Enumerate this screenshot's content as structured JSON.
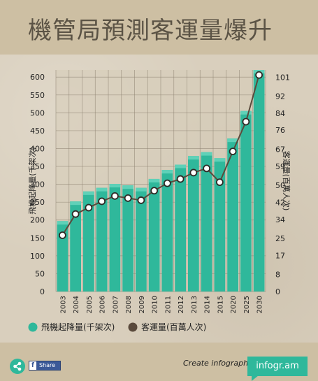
{
  "header": {
    "title": "機管局預測客運量爆升"
  },
  "chart_data": {
    "type": "bar-line",
    "categories": [
      "2003",
      "2004",
      "2005",
      "2006",
      "2007",
      "2008",
      "2009",
      "2010",
      "2011",
      "2012",
      "2013",
      "2014",
      "2015",
      "2020",
      "2025",
      "2030"
    ],
    "series": [
      {
        "name": "飛機起降量(千架次)",
        "type": "bar",
        "axis": "left",
        "color": "#2fb89b",
        "values": [
          197,
          252,
          280,
          290,
          301,
          297,
          290,
          315,
          340,
          355,
          379,
          390,
          373,
          428,
          505,
          620
        ]
      },
      {
        "name": "客運量(百萬人次)",
        "type": "line",
        "axis": "right",
        "color": "#5a4a3c",
        "values": [
          26.5,
          36.5,
          39.5,
          42.5,
          45,
          44,
          43,
          47.5,
          51,
          53,
          56,
          58,
          51.5,
          66,
          80,
          102
        ]
      }
    ],
    "ylabel_left": "飛機起降量(千架次)",
    "ylabel_right": "客運量(百萬人次)",
    "yticks_left": [
      0,
      50,
      100,
      150,
      200,
      250,
      300,
      350,
      400,
      450,
      500,
      550,
      600
    ],
    "ylim_left": [
      0,
      620
    ],
    "yticks_right": [
      0,
      8,
      17,
      25,
      34,
      42,
      50,
      59,
      67,
      76,
      84,
      92,
      101
    ],
    "ylim_right": [
      0,
      104.4
    ],
    "grid": true,
    "legend_position": "bottom"
  },
  "footer": {
    "share_label": "Share",
    "create_label": "Create infographics",
    "brand": "infogr.am"
  },
  "colors": {
    "accent": "#2fb89b",
    "line": "#5a4a3c",
    "header_bg": "#cdbfa3",
    "page_bg": "#d9cfbd"
  },
  "icons": {
    "share": "share-icon",
    "facebook": "facebook-icon"
  }
}
